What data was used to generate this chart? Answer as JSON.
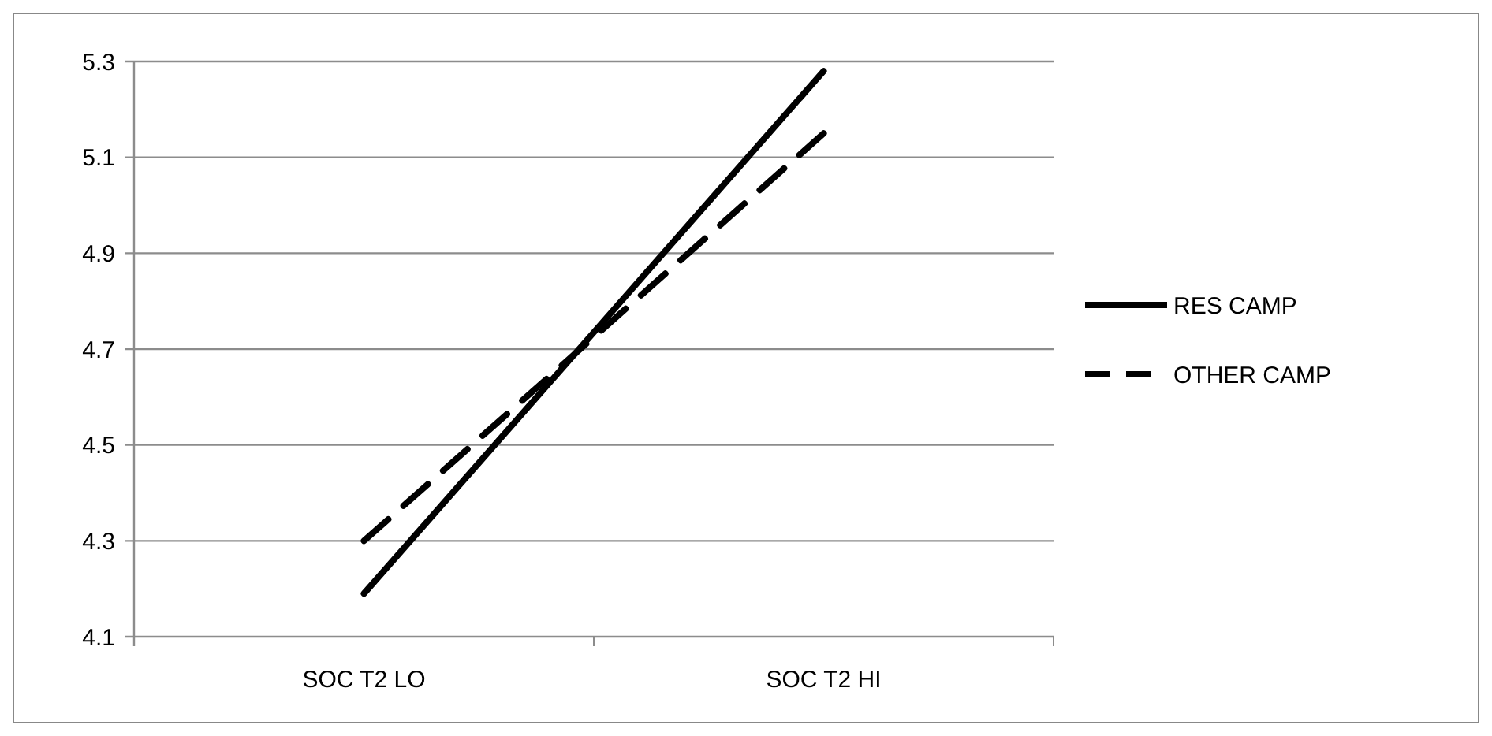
{
  "chart_data": {
    "type": "line",
    "categories": [
      "SOC T2 LO",
      "SOC T2 HI"
    ],
    "series": [
      {
        "name": "RES CAMP",
        "color": "#000000",
        "values": [
          4.19,
          5.28
        ],
        "line_style": "solid"
      },
      {
        "name": "OTHER CAMP",
        "color": "#000000",
        "values": [
          4.3,
          5.15
        ],
        "line_style": "dashed"
      }
    ],
    "ylim": [
      4.1,
      5.3
    ],
    "yticks": [
      4.1,
      4.3,
      4.5,
      4.7,
      4.9,
      5.1,
      5.3
    ],
    "grid": "y",
    "legend": "right",
    "marker": "none"
  }
}
